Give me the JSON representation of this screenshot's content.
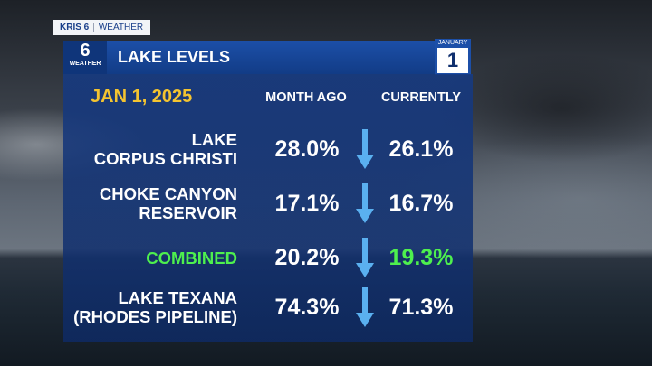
{
  "brand": {
    "station": "KRIS 6",
    "section": "WEATHER"
  },
  "header": {
    "logo_number": "6",
    "logo_text": "WEATHER",
    "title": "LAKE LEVELS",
    "calendar_month": "JANUARY",
    "calendar_day": "1"
  },
  "table": {
    "date": "JAN 1, 2025",
    "columns": [
      "MONTH AGO",
      "CURRENTLY"
    ],
    "rows": [
      {
        "name": [
          "LAKE",
          "CORPUS CHRISTI"
        ],
        "month_ago": "28.0%",
        "currently": "26.1%"
      },
      {
        "name": [
          "CHOKE CANYON",
          "RESERVOIR"
        ],
        "month_ago": "17.1%",
        "currently": "16.7%"
      },
      {
        "name": [
          "COMBINED"
        ],
        "month_ago": "20.2%",
        "currently": "19.3%"
      },
      {
        "name": [
          "LAKE TEXANA",
          "(RHODES PIPELINE)"
        ],
        "month_ago": "74.3%",
        "currently": "71.3%"
      }
    ]
  }
}
